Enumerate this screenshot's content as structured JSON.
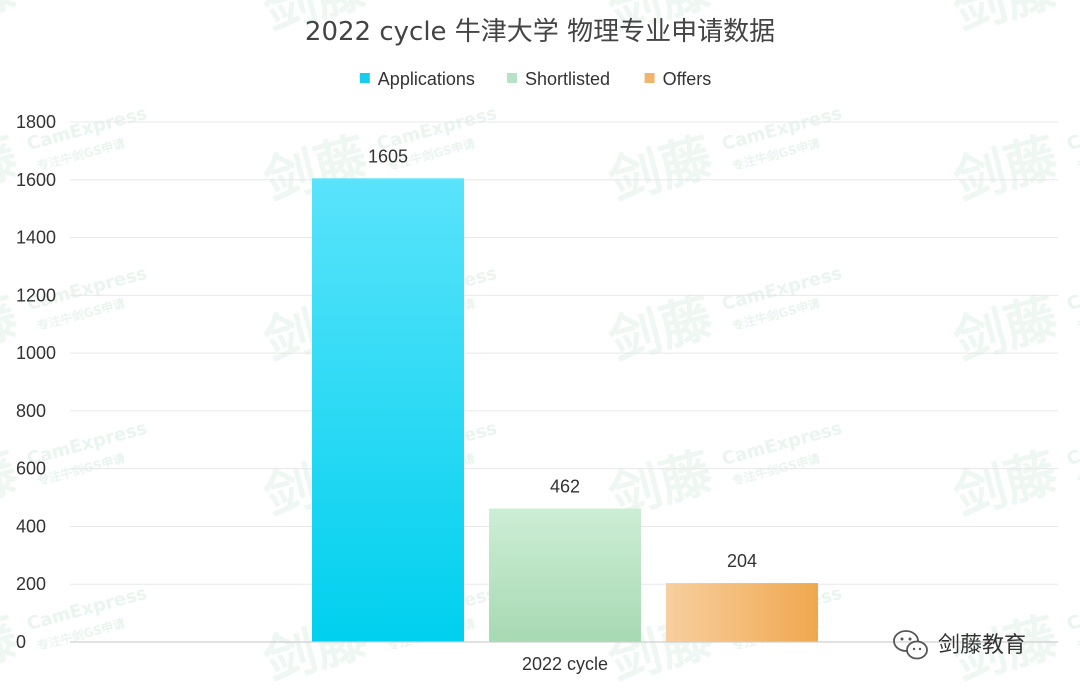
{
  "chart_data": {
    "type": "bar",
    "title": "2022 cycle 牛津大学 物理专业申请数据",
    "categories": [
      "2022 cycle"
    ],
    "series": [
      {
        "name": "Applications",
        "values": [
          1605
        ],
        "color": "#16cdf0"
      },
      {
        "name": "Shortlisted",
        "values": [
          462
        ],
        "color": "#b7e3c4"
      },
      {
        "name": "Offers",
        "values": [
          204
        ],
        "color": "#f2b46d"
      }
    ],
    "ylim": [
      0,
      1800
    ],
    "yticks": [
      0,
      200,
      400,
      600,
      800,
      1000,
      1200,
      1400,
      1600,
      1800
    ],
    "grid": true,
    "legend_position": "top-center",
    "data_labels": true
  },
  "watermark": {
    "chinese": "剑藤",
    "english": "CamExpress",
    "tagline": "专注牛剑GS申请"
  },
  "badge": {
    "icon": "wechat-icon",
    "label": "剑藤教育"
  }
}
